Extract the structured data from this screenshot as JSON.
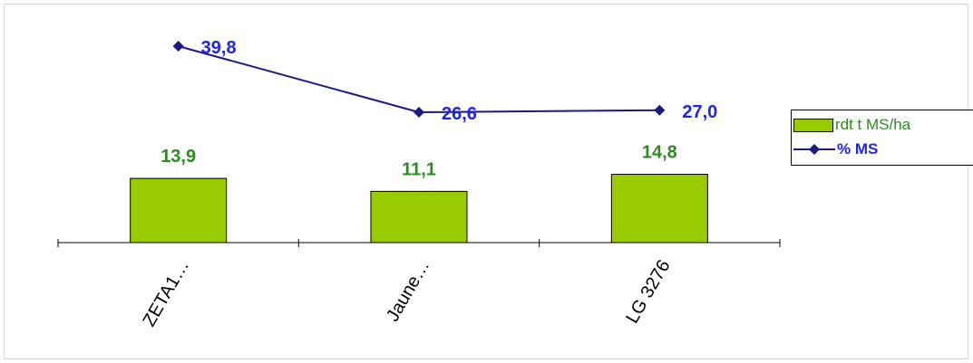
{
  "chart_data": {
    "type": "bar",
    "categories": [
      "ZETA1…",
      "Jaune…",
      "LG 3276"
    ],
    "series": [
      {
        "name": "rdt t MS/ha",
        "type": "bar",
        "values": [
          13.9,
          11.1,
          14.8
        ],
        "labels": [
          "13,9",
          "11,1",
          "14,8"
        ]
      },
      {
        "name": "% MS",
        "type": "line",
        "values": [
          39.8,
          26.6,
          27.0
        ],
        "labels": [
          "39,8",
          "26,6",
          "27,0"
        ]
      }
    ],
    "title": "",
    "xlabel": "",
    "ylabel": "",
    "grid": false,
    "legend_position": "right"
  },
  "colors": {
    "bar_fill": "#99CC00",
    "bar_label": "#2E8B22",
    "line": "#1A1A80",
    "line_label": "#1F24E8"
  }
}
